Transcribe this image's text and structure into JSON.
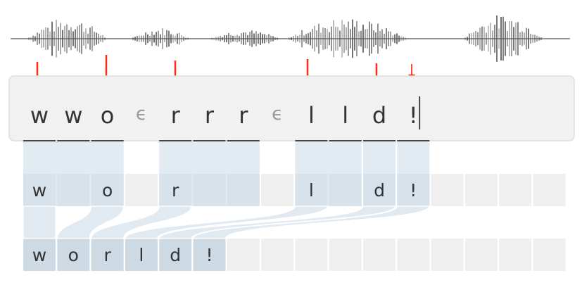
{
  "waveform": {
    "color": "#555555"
  },
  "arrows": {
    "color": "#ff2a1a",
    "count": 6
  },
  "input": {
    "frames": [
      "w",
      "w",
      "o",
      "ϵ",
      "r",
      "r",
      "r",
      "ϵ",
      "l",
      "l",
      "d",
      "!"
    ],
    "cursor_after_last": true
  },
  "collapsed_row": {
    "cells": [
      "w",
      "",
      "o",
      "",
      "r",
      "",
      "",
      "",
      "l",
      "",
      "d",
      "!",
      "",
      "",
      "",
      ""
    ]
  },
  "output_row": {
    "cells": [
      "w",
      "o",
      "r",
      "l",
      "d",
      "!",
      "",
      "",
      "",
      "",
      "",
      "",
      "",
      "",
      "",
      ""
    ]
  },
  "colors": {
    "highlight": "#dae4ee",
    "highlight_on_cell": "#cdd9e3",
    "empty_cell": "#efefef",
    "epsilon": "#999999",
    "text": "#333333",
    "input_box_bg": "#f1f1f1",
    "input_box_border": "#dddddd"
  }
}
